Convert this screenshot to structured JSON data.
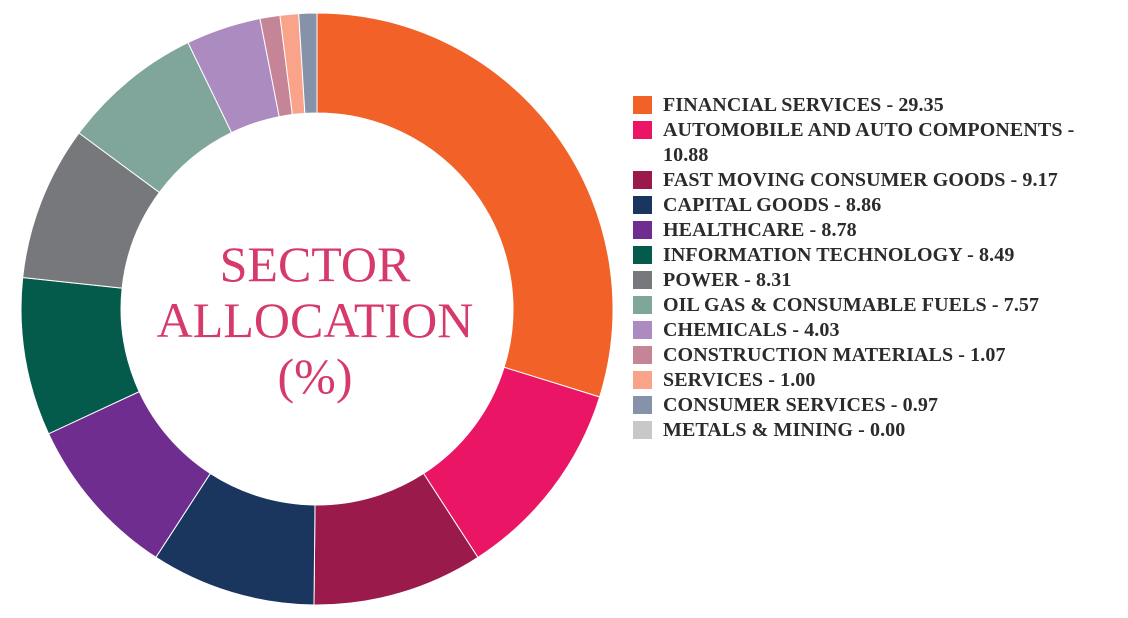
{
  "chart_data": {
    "type": "pie",
    "variant": "donut",
    "title": "SECTOR\nALLOCATION\n(%)",
    "legend_position": "right",
    "slices": [
      {
        "label": "FINANCIAL SERVICES - 29.35",
        "value": 29.35,
        "color": "#f26127"
      },
      {
        "label": "AUTOMOBILE AND AUTO COMPONENTS - 10.88",
        "value": 10.88,
        "color": "#eb1566"
      },
      {
        "label": "FAST MOVING CONSUMER GOODS - 9.17",
        "value": 9.17,
        "color": "#9a1a4c"
      },
      {
        "label": "CAPITAL GOODS - 8.86",
        "value": 8.86,
        "color": "#1b365e"
      },
      {
        "label": "HEALTHCARE - 8.78",
        "value": 8.78,
        "color": "#6f2d90"
      },
      {
        "label": "INFORMATION TECHNOLOGY - 8.49",
        "value": 8.49,
        "color": "#045b4b"
      },
      {
        "label": "POWER - 8.31",
        "value": 8.31,
        "color": "#77787b"
      },
      {
        "label": "OIL GAS & CONSUMABLE FUELS - 7.57",
        "value": 7.57,
        "color": "#80a59a"
      },
      {
        "label": "CHEMICALS - 4.03",
        "value": 4.03,
        "color": "#ab8bc0"
      },
      {
        "label": "CONSTRUCTION MATERIALS - 1.07",
        "value": 1.07,
        "color": "#c68596"
      },
      {
        "label": "SERVICES - 1.00",
        "value": 1.0,
        "color": "#f8a38a"
      },
      {
        "label": "CONSUMER SERVICES - 0.97",
        "value": 0.97,
        "color": "#8592a9"
      },
      {
        "label": "METALS & MINING - 0.00",
        "value": 0.0,
        "color": "#c7c8ca"
      }
    ]
  }
}
